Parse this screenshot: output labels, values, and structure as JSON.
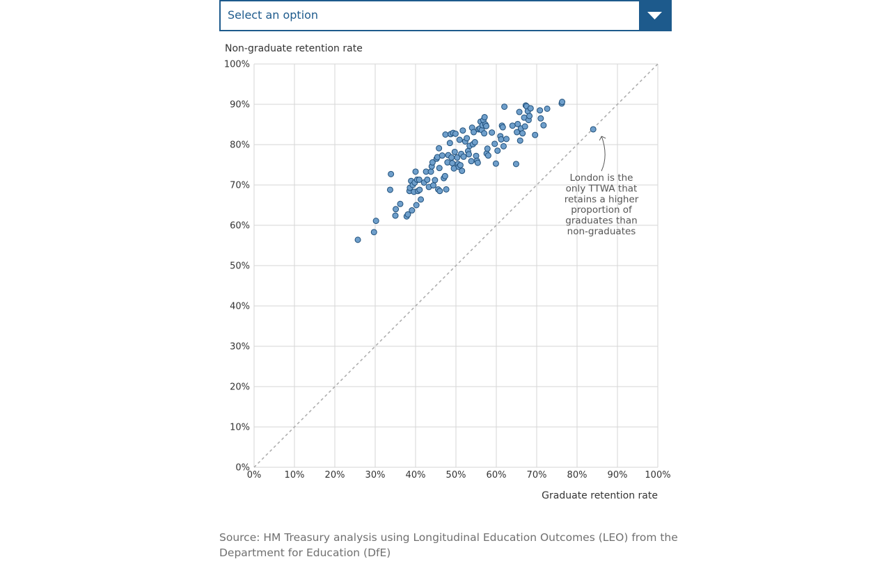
{
  "dropdown": {
    "selected_label": "Select an option",
    "icon": "chevron-down-icon"
  },
  "chart_data": {
    "type": "scatter",
    "xlabel": "Graduate retention rate",
    "ylabel": "Non-graduate retention rate",
    "xlim": [
      0,
      100
    ],
    "ylim": [
      0,
      100
    ],
    "x_tick_labels": [
      "0%",
      "10%",
      "20%",
      "30%",
      "40%",
      "50%",
      "60%",
      "70%",
      "80%",
      "90%",
      "100%"
    ],
    "y_tick_labels": [
      "0%",
      "10%",
      "20%",
      "30%",
      "40%",
      "50%",
      "60%",
      "70%",
      "80%",
      "90%",
      "100%"
    ],
    "grid": true,
    "reference_line": "y = x",
    "annotation": {
      "lines": [
        "London is the",
        "only TTWA that",
        "retains a higher",
        "proportion of",
        "graduates than",
        "non-graduates"
      ],
      "target": {
        "x": 84.0,
        "y": 83.8
      }
    },
    "colors": {
      "point_fill": "#6f9fcb",
      "point_stroke": "#1f4f7a",
      "reference_line": "#aaaaaa",
      "grid": "#d6d6d6"
    },
    "points": [
      [
        25.7,
        56.4
      ],
      [
        29.7,
        58.3
      ],
      [
        30.2,
        61.1
      ],
      [
        33.7,
        68.8
      ],
      [
        33.9,
        72.7
      ],
      [
        35.0,
        62.4
      ],
      [
        35.1,
        64.0
      ],
      [
        36.2,
        65.3
      ],
      [
        37.8,
        62.2
      ],
      [
        38.1,
        62.7
      ],
      [
        38.5,
        68.5
      ],
      [
        38.6,
        69.3
      ],
      [
        38.9,
        71.0
      ],
      [
        39.1,
        63.7
      ],
      [
        39.3,
        70.0
      ],
      [
        39.6,
        68.3
      ],
      [
        39.8,
        70.6
      ],
      [
        40.0,
        73.3
      ],
      [
        40.2,
        65.0
      ],
      [
        40.4,
        71.3
      ],
      [
        40.6,
        68.5
      ],
      [
        40.9,
        71.3
      ],
      [
        41.0,
        68.8
      ],
      [
        41.3,
        66.4
      ],
      [
        42.1,
        70.6
      ],
      [
        42.6,
        73.3
      ],
      [
        42.9,
        71.3
      ],
      [
        43.3,
        69.5
      ],
      [
        43.8,
        73.3
      ],
      [
        44.0,
        74.6
      ],
      [
        44.2,
        75.6
      ],
      [
        44.4,
        69.9
      ],
      [
        44.8,
        71.2
      ],
      [
        45.2,
        76.5
      ],
      [
        45.4,
        76.9
      ],
      [
        45.6,
        68.9
      ],
      [
        45.8,
        79.1
      ],
      [
        45.9,
        74.2
      ],
      [
        46.0,
        68.5
      ],
      [
        46.6,
        77.3
      ],
      [
        47.0,
        71.7
      ],
      [
        47.3,
        72.2
      ],
      [
        47.4,
        82.5
      ],
      [
        47.6,
        68.9
      ],
      [
        47.9,
        75.6
      ],
      [
        48.1,
        77.4
      ],
      [
        48.5,
        80.4
      ],
      [
        48.7,
        82.6
      ],
      [
        48.9,
        76.8
      ],
      [
        49.1,
        75.4
      ],
      [
        49.3,
        82.9
      ],
      [
        49.5,
        74.1
      ],
      [
        49.7,
        78.2
      ],
      [
        49.9,
        82.7
      ],
      [
        50.3,
        76.8
      ],
      [
        50.5,
        75.2
      ],
      [
        50.7,
        74.5
      ],
      [
        50.9,
        81.2
      ],
      [
        51.1,
        74.9
      ],
      [
        51.3,
        77.7
      ],
      [
        51.5,
        73.5
      ],
      [
        51.7,
        83.5
      ],
      [
        51.9,
        77.0
      ],
      [
        52.3,
        80.8
      ],
      [
        52.7,
        81.6
      ],
      [
        53.0,
        78.4
      ],
      [
        53.2,
        77.6
      ],
      [
        53.4,
        79.7
      ],
      [
        53.8,
        75.9
      ],
      [
        54.0,
        84.2
      ],
      [
        54.2,
        80.1
      ],
      [
        54.4,
        83.1
      ],
      [
        54.7,
        80.6
      ],
      [
        55.0,
        77.2
      ],
      [
        55.2,
        76.0
      ],
      [
        55.4,
        75.5
      ],
      [
        55.6,
        83.8
      ],
      [
        55.9,
        84.0
      ],
      [
        56.1,
        85.7
      ],
      [
        56.4,
        83.6
      ],
      [
        56.6,
        84.8
      ],
      [
        56.8,
        86.1
      ],
      [
        57.0,
        82.8
      ],
      [
        57.1,
        86.8
      ],
      [
        57.3,
        85.0
      ],
      [
        57.5,
        84.6
      ],
      [
        57.6,
        77.8
      ],
      [
        57.8,
        79.0
      ],
      [
        58.0,
        77.3
      ],
      [
        58.9,
        83.0
      ],
      [
        59.6,
        80.2
      ],
      [
        59.9,
        75.3
      ],
      [
        60.3,
        78.5
      ],
      [
        61.0,
        82.1
      ],
      [
        61.2,
        81.3
      ],
      [
        61.4,
        84.7
      ],
      [
        61.6,
        84.3
      ],
      [
        61.8,
        79.6
      ],
      [
        62.0,
        89.4
      ],
      [
        62.5,
        81.4
      ],
      [
        64.0,
        84.7
      ],
      [
        64.9,
        75.2
      ],
      [
        65.1,
        83.1
      ],
      [
        65.3,
        85.1
      ],
      [
        65.7,
        88.1
      ],
      [
        65.9,
        81.0
      ],
      [
        66.1,
        84.0
      ],
      [
        66.5,
        82.8
      ],
      [
        66.9,
        86.7
      ],
      [
        67.1,
        84.5
      ],
      [
        67.3,
        89.7
      ],
      [
        67.5,
        89.5
      ],
      [
        67.8,
        88.3
      ],
      [
        68.0,
        86.1
      ],
      [
        68.2,
        87.1
      ],
      [
        68.5,
        89.0
      ],
      [
        69.6,
        82.4
      ],
      [
        70.8,
        88.5
      ],
      [
        71.0,
        86.5
      ],
      [
        71.7,
        84.8
      ],
      [
        72.6,
        88.9
      ],
      [
        76.2,
        90.2
      ],
      [
        76.3,
        90.6
      ],
      [
        84.0,
        83.8
      ]
    ]
  },
  "source": {
    "text": "Source: HM Treasury analysis using Longitudinal Education Outcomes (LEO) from the Department for Education (DfE)"
  }
}
